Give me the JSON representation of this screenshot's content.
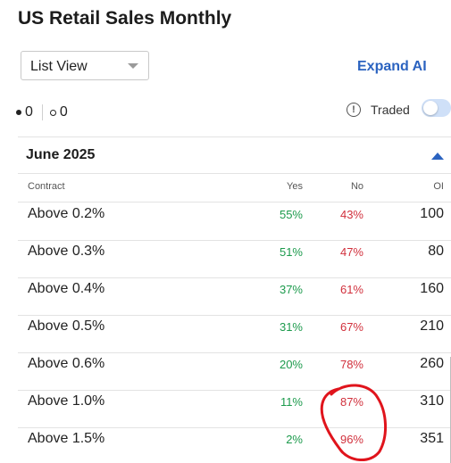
{
  "title": "US Retail Sales Monthly",
  "view_select": {
    "value": "List View"
  },
  "expand_link": "Expand AI",
  "counts": {
    "filled": "0",
    "hollow": "0"
  },
  "traded": {
    "label": "Traded",
    "enabled": false
  },
  "section": {
    "month": "June 2025"
  },
  "table": {
    "headers": {
      "contract": "Contract",
      "yes": "Yes",
      "no": "No",
      "oi": "OI"
    },
    "rows": [
      {
        "contract": "Above 0.2%",
        "yes": "55%",
        "no": "43%",
        "oi": "100"
      },
      {
        "contract": "Above 0.3%",
        "yes": "51%",
        "no": "47%",
        "oi": "80"
      },
      {
        "contract": "Above 0.4%",
        "yes": "37%",
        "no": "61%",
        "oi": "160"
      },
      {
        "contract": "Above 0.5%",
        "yes": "31%",
        "no": "67%",
        "oi": "210"
      },
      {
        "contract": "Above 0.6%",
        "yes": "20%",
        "no": "78%",
        "oi": "260"
      },
      {
        "contract": "Above 1.0%",
        "yes": "11%",
        "no": "87%",
        "oi": "310"
      },
      {
        "contract": "Above 1.5%",
        "yes": "2%",
        "no": "96%",
        "oi": "351"
      }
    ]
  },
  "colors": {
    "yes": "#1c9a4c",
    "no": "#d1303c",
    "accent": "#2b63c0",
    "annotation": "#e0141c"
  },
  "icons": {
    "info": "info-icon",
    "dropdown": "chevron-down-icon",
    "collapse": "caret-up-icon"
  }
}
